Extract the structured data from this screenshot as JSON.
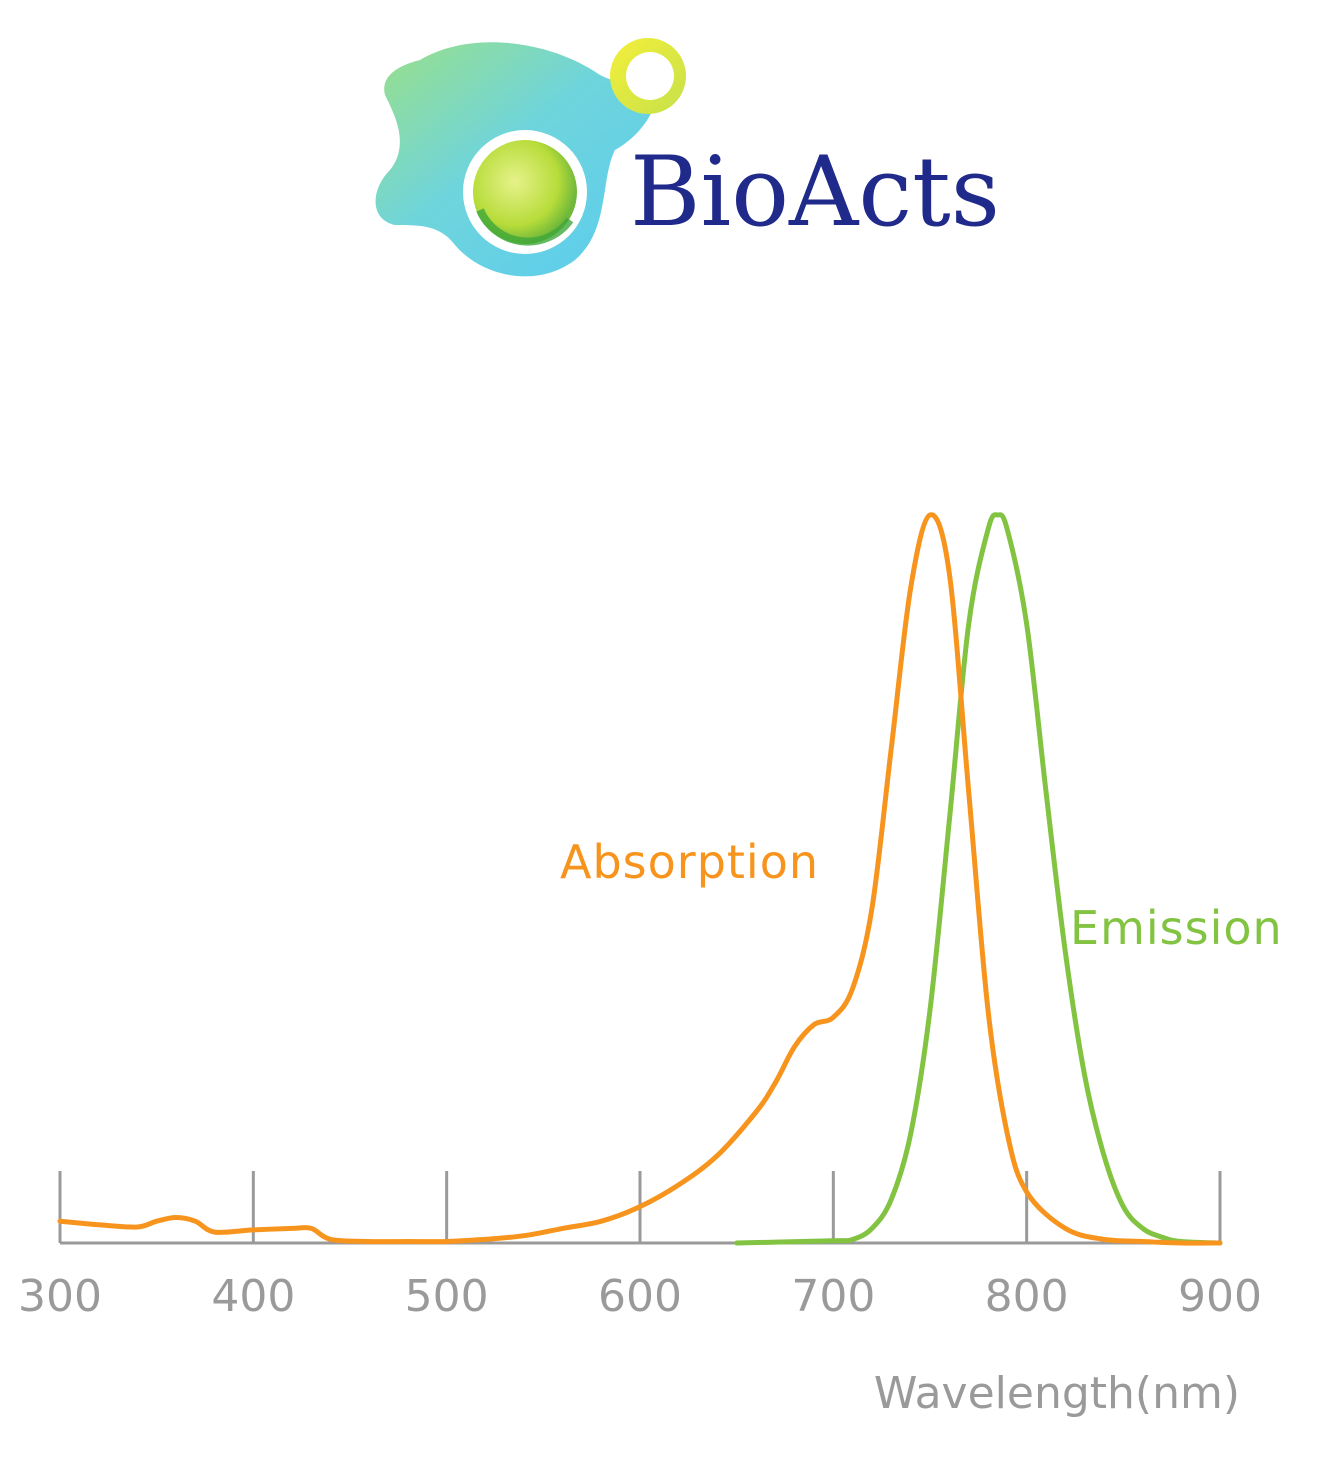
{
  "brand": {
    "name": "BioActs",
    "text_color": "#1f2a8a"
  },
  "chart_data": {
    "type": "line",
    "xlabel": "Wavelength(nm)",
    "ylabel": "",
    "xlim": [
      300,
      900
    ],
    "ylim": [
      0,
      1
    ],
    "x_ticks": [
      300,
      400,
      500,
      600,
      700,
      800,
      900
    ],
    "grid": false,
    "series": [
      {
        "name": "Absorption",
        "color": "#f7941d",
        "points": [
          [
            300,
            0.03
          ],
          [
            320,
            0.025
          ],
          [
            340,
            0.022
          ],
          [
            350,
            0.03
          ],
          [
            360,
            0.035
          ],
          [
            370,
            0.03
          ],
          [
            380,
            0.015
          ],
          [
            400,
            0.018
          ],
          [
            420,
            0.02
          ],
          [
            430,
            0.02
          ],
          [
            440,
            0.005
          ],
          [
            460,
            0.002
          ],
          [
            480,
            0.002
          ],
          [
            500,
            0.002
          ],
          [
            520,
            0.005
          ],
          [
            540,
            0.01
          ],
          [
            560,
            0.02
          ],
          [
            580,
            0.03
          ],
          [
            600,
            0.05
          ],
          [
            620,
            0.08
          ],
          [
            640,
            0.12
          ],
          [
            660,
            0.18
          ],
          [
            670,
            0.22
          ],
          [
            680,
            0.27
          ],
          [
            690,
            0.3
          ],
          [
            700,
            0.31
          ],
          [
            710,
            0.35
          ],
          [
            720,
            0.46
          ],
          [
            730,
            0.68
          ],
          [
            740,
            0.9
          ],
          [
            750,
            1.0
          ],
          [
            760,
            0.92
          ],
          [
            770,
            0.62
          ],
          [
            780,
            0.32
          ],
          [
            790,
            0.15
          ],
          [
            800,
            0.07
          ],
          [
            820,
            0.02
          ],
          [
            840,
            0.005
          ],
          [
            860,
            0.002
          ],
          [
            880,
            0.0
          ],
          [
            900,
            0.0
          ]
        ]
      },
      {
        "name": "Emission",
        "color": "#82c341",
        "points": [
          [
            650,
            0.0
          ],
          [
            700,
            0.003
          ],
          [
            710,
            0.005
          ],
          [
            720,
            0.02
          ],
          [
            730,
            0.06
          ],
          [
            740,
            0.15
          ],
          [
            750,
            0.32
          ],
          [
            760,
            0.58
          ],
          [
            770,
            0.85
          ],
          [
            780,
            0.98
          ],
          [
            785,
            1.0
          ],
          [
            790,
            0.98
          ],
          [
            800,
            0.85
          ],
          [
            810,
            0.62
          ],
          [
            820,
            0.4
          ],
          [
            830,
            0.23
          ],
          [
            840,
            0.12
          ],
          [
            850,
            0.05
          ],
          [
            860,
            0.02
          ],
          [
            870,
            0.008
          ],
          [
            880,
            0.002
          ],
          [
            900,
            0.0
          ]
        ]
      }
    ]
  }
}
